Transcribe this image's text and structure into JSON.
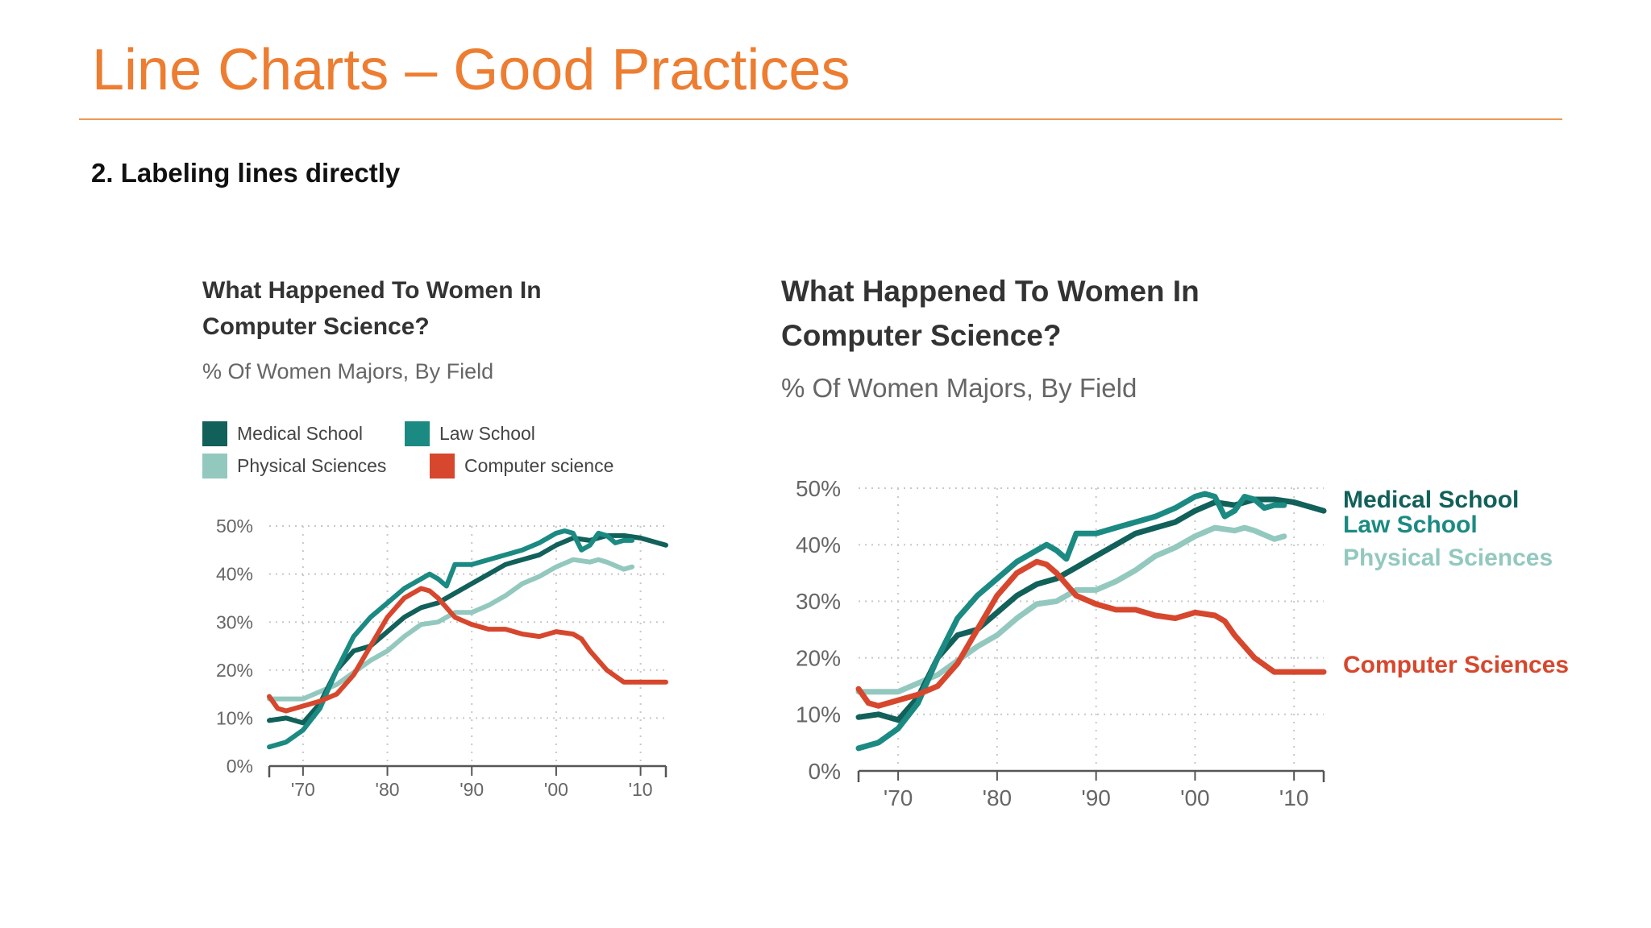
{
  "slide": {
    "title": "Line Charts – Good Practices",
    "subheading": "2. Labeling lines directly",
    "accent": "#ED7D31"
  },
  "left_chart": {
    "title_line1": "What Happened To Women In",
    "title_line2": "Computer Science?",
    "subtitle": "% Of Women Majors, By Field",
    "legend": [
      {
        "label": "Medical School",
        "color": "#12605a"
      },
      {
        "label": "Law School",
        "color": "#1b8a82"
      },
      {
        "label": "Physical Sciences",
        "color": "#93c8bf"
      },
      {
        "label": "Computer science",
        "color": "#d6472d"
      }
    ]
  },
  "right_chart": {
    "title_line1": "What Happened To Women In",
    "title_line2": "Computer Science?",
    "subtitle": "% Of Women Majors, By Field",
    "line_labels": [
      {
        "label": "Medical School",
        "color": "#12605a"
      },
      {
        "label": "Law School",
        "color": "#1b8a82"
      },
      {
        "label": "Physical Sciences",
        "color": "#93c8bf"
      },
      {
        "label": "Computer Sciences",
        "color": "#d6472d"
      }
    ]
  },
  "chart_data": [
    {
      "type": "line",
      "legend": "top",
      "grid": true,
      "xlim": [
        1966,
        2013
      ],
      "ylim": [
        0,
        50
      ],
      "x_ticks": [
        1970,
        1980,
        1990,
        2000,
        2010
      ],
      "x_tick_labels": [
        "'70",
        "'80",
        "'90",
        "'00",
        "'10"
      ],
      "y_ticks": [
        0,
        10,
        20,
        30,
        40,
        50
      ],
      "y_tick_labels": [
        "0%",
        "10%",
        "20%",
        "30%",
        "40%",
        "50%"
      ],
      "series": [
        {
          "name": "Medical School",
          "color": "#12605a",
          "points": [
            [
              1966,
              9.5
            ],
            [
              1968,
              10
            ],
            [
              1970,
              9
            ],
            [
              1972,
              13
            ],
            [
              1974,
              20
            ],
            [
              1976,
              24
            ],
            [
              1978,
              25
            ],
            [
              1980,
              28
            ],
            [
              1982,
              31
            ],
            [
              1984,
              33
            ],
            [
              1986,
              34
            ],
            [
              1988,
              36
            ],
            [
              1990,
              38
            ],
            [
              1992,
              40
            ],
            [
              1994,
              42
            ],
            [
              1996,
              43
            ],
            [
              1998,
              44
            ],
            [
              2000,
              46
            ],
            [
              2002,
              47.5
            ],
            [
              2004,
              47
            ],
            [
              2006,
              48
            ],
            [
              2008,
              48
            ],
            [
              2010,
              47.5
            ],
            [
              2013,
              46
            ]
          ]
        },
        {
          "name": "Law School",
          "color": "#1b8a82",
          "points": [
            [
              1966,
              4
            ],
            [
              1968,
              5
            ],
            [
              1970,
              7.5
            ],
            [
              1972,
              12
            ],
            [
              1974,
              20
            ],
            [
              1976,
              27
            ],
            [
              1978,
              31
            ],
            [
              1980,
              34
            ],
            [
              1982,
              37
            ],
            [
              1984,
              39
            ],
            [
              1985,
              40
            ],
            [
              1986,
              39
            ],
            [
              1987,
              37.5
            ],
            [
              1988,
              42
            ],
            [
              1990,
              42
            ],
            [
              1992,
              43
            ],
            [
              1994,
              44
            ],
            [
              1996,
              45
            ],
            [
              1998,
              46.5
            ],
            [
              2000,
              48.5
            ],
            [
              2001,
              49
            ],
            [
              2002,
              48.5
            ],
            [
              2003,
              45
            ],
            [
              2004,
              46
            ],
            [
              2005,
              48.5
            ],
            [
              2006,
              48
            ],
            [
              2007,
              46.5
            ],
            [
              2008,
              47
            ],
            [
              2009,
              47
            ]
          ]
        },
        {
          "name": "Physical Sciences",
          "color": "#93c8bf",
          "points": [
            [
              1966,
              14
            ],
            [
              1970,
              14
            ],
            [
              1972,
              15.5
            ],
            [
              1974,
              17
            ],
            [
              1976,
              19.5
            ],
            [
              1978,
              22
            ],
            [
              1980,
              24
            ],
            [
              1982,
              27
            ],
            [
              1984,
              29.5
            ],
            [
              1986,
              30
            ],
            [
              1988,
              32
            ],
            [
              1990,
              32
            ],
            [
              1992,
              33.5
            ],
            [
              1994,
              35.5
            ],
            [
              1996,
              38
            ],
            [
              1998,
              39.5
            ],
            [
              2000,
              41.5
            ],
            [
              2002,
              43
            ],
            [
              2004,
              42.5
            ],
            [
              2005,
              43
            ],
            [
              2006,
              42.5
            ],
            [
              2008,
              41
            ],
            [
              2009,
              41.5
            ]
          ]
        },
        {
          "name": "Computer science",
          "color": "#d6472d",
          "points": [
            [
              1966,
              14.5
            ],
            [
              1967,
              12
            ],
            [
              1968,
              11.5
            ],
            [
              1970,
              12.5
            ],
            [
              1972,
              13.5
            ],
            [
              1974,
              15
            ],
            [
              1976,
              19
            ],
            [
              1978,
              25
            ],
            [
              1980,
              31
            ],
            [
              1982,
              35
            ],
            [
              1984,
              37
            ],
            [
              1985,
              36.5
            ],
            [
              1986,
              35
            ],
            [
              1988,
              31
            ],
            [
              1990,
              29.5
            ],
            [
              1992,
              28.5
            ],
            [
              1994,
              28.5
            ],
            [
              1996,
              27.5
            ],
            [
              1998,
              27
            ],
            [
              2000,
              28
            ],
            [
              2002,
              27.5
            ],
            [
              2003,
              26.5
            ],
            [
              2004,
              24
            ],
            [
              2006,
              20
            ],
            [
              2008,
              17.5
            ],
            [
              2010,
              17.5
            ],
            [
              2012,
              17.5
            ],
            [
              2013,
              17.5
            ]
          ]
        }
      ]
    },
    {
      "type": "line",
      "legend": "direct labels at line ends (right)",
      "grid": true,
      "xlim": [
        1966,
        2013
      ],
      "ylim": [
        0,
        50
      ],
      "x_ticks": [
        1970,
        1980,
        1990,
        2000,
        2010
      ],
      "x_tick_labels": [
        "'70",
        "'80",
        "'90",
        "'00",
        "'10"
      ],
      "y_ticks": [
        0,
        10,
        20,
        30,
        40,
        50
      ],
      "y_tick_labels": [
        "0%",
        "10%",
        "20%",
        "30%",
        "40%",
        "50%"
      ],
      "series": [
        {
          "name": "Medical School",
          "color": "#12605a",
          "points": [
            [
              1966,
              9.5
            ],
            [
              1968,
              10
            ],
            [
              1970,
              9
            ],
            [
              1972,
              13
            ],
            [
              1974,
              20
            ],
            [
              1976,
              24
            ],
            [
              1978,
              25
            ],
            [
              1980,
              28
            ],
            [
              1982,
              31
            ],
            [
              1984,
              33
            ],
            [
              1986,
              34
            ],
            [
              1988,
              36
            ],
            [
              1990,
              38
            ],
            [
              1992,
              40
            ],
            [
              1994,
              42
            ],
            [
              1996,
              43
            ],
            [
              1998,
              44
            ],
            [
              2000,
              46
            ],
            [
              2002,
              47.5
            ],
            [
              2004,
              47
            ],
            [
              2006,
              48
            ],
            [
              2008,
              48
            ],
            [
              2010,
              47.5
            ],
            [
              2013,
              46
            ]
          ]
        },
        {
          "name": "Law School",
          "color": "#1b8a82",
          "points": [
            [
              1966,
              4
            ],
            [
              1968,
              5
            ],
            [
              1970,
              7.5
            ],
            [
              1972,
              12
            ],
            [
              1974,
              20
            ],
            [
              1976,
              27
            ],
            [
              1978,
              31
            ],
            [
              1980,
              34
            ],
            [
              1982,
              37
            ],
            [
              1984,
              39
            ],
            [
              1985,
              40
            ],
            [
              1986,
              39
            ],
            [
              1987,
              37.5
            ],
            [
              1988,
              42
            ],
            [
              1990,
              42
            ],
            [
              1992,
              43
            ],
            [
              1994,
              44
            ],
            [
              1996,
              45
            ],
            [
              1998,
              46.5
            ],
            [
              2000,
              48.5
            ],
            [
              2001,
              49
            ],
            [
              2002,
              48.5
            ],
            [
              2003,
              45
            ],
            [
              2004,
              46
            ],
            [
              2005,
              48.5
            ],
            [
              2006,
              48
            ],
            [
              2007,
              46.5
            ],
            [
              2008,
              47
            ],
            [
              2009,
              47
            ]
          ]
        },
        {
          "name": "Physical Sciences",
          "color": "#93c8bf",
          "points": [
            [
              1966,
              14
            ],
            [
              1970,
              14
            ],
            [
              1972,
              15.5
            ],
            [
              1974,
              17
            ],
            [
              1976,
              19.5
            ],
            [
              1978,
              22
            ],
            [
              1980,
              24
            ],
            [
              1982,
              27
            ],
            [
              1984,
              29.5
            ],
            [
              1986,
              30
            ],
            [
              1988,
              32
            ],
            [
              1990,
              32
            ],
            [
              1992,
              33.5
            ],
            [
              1994,
              35.5
            ],
            [
              1996,
              38
            ],
            [
              1998,
              39.5
            ],
            [
              2000,
              41.5
            ],
            [
              2002,
              43
            ],
            [
              2004,
              42.5
            ],
            [
              2005,
              43
            ],
            [
              2006,
              42.5
            ],
            [
              2008,
              41
            ],
            [
              2009,
              41.5
            ]
          ]
        },
        {
          "name": "Computer Sciences",
          "color": "#d6472d",
          "points": [
            [
              1966,
              14.5
            ],
            [
              1967,
              12
            ],
            [
              1968,
              11.5
            ],
            [
              1970,
              12.5
            ],
            [
              1972,
              13.5
            ],
            [
              1974,
              15
            ],
            [
              1976,
              19
            ],
            [
              1978,
              25
            ],
            [
              1980,
              31
            ],
            [
              1982,
              35
            ],
            [
              1984,
              37
            ],
            [
              1985,
              36.5
            ],
            [
              1986,
              35
            ],
            [
              1988,
              31
            ],
            [
              1990,
              29.5
            ],
            [
              1992,
              28.5
            ],
            [
              1994,
              28.5
            ],
            [
              1996,
              27.5
            ],
            [
              1998,
              27
            ],
            [
              2000,
              28
            ],
            [
              2002,
              27.5
            ],
            [
              2003,
              26.5
            ],
            [
              2004,
              24
            ],
            [
              2006,
              20
            ],
            [
              2008,
              17.5
            ],
            [
              2010,
              17.5
            ],
            [
              2012,
              17.5
            ],
            [
              2013,
              17.5
            ]
          ]
        }
      ]
    }
  ]
}
